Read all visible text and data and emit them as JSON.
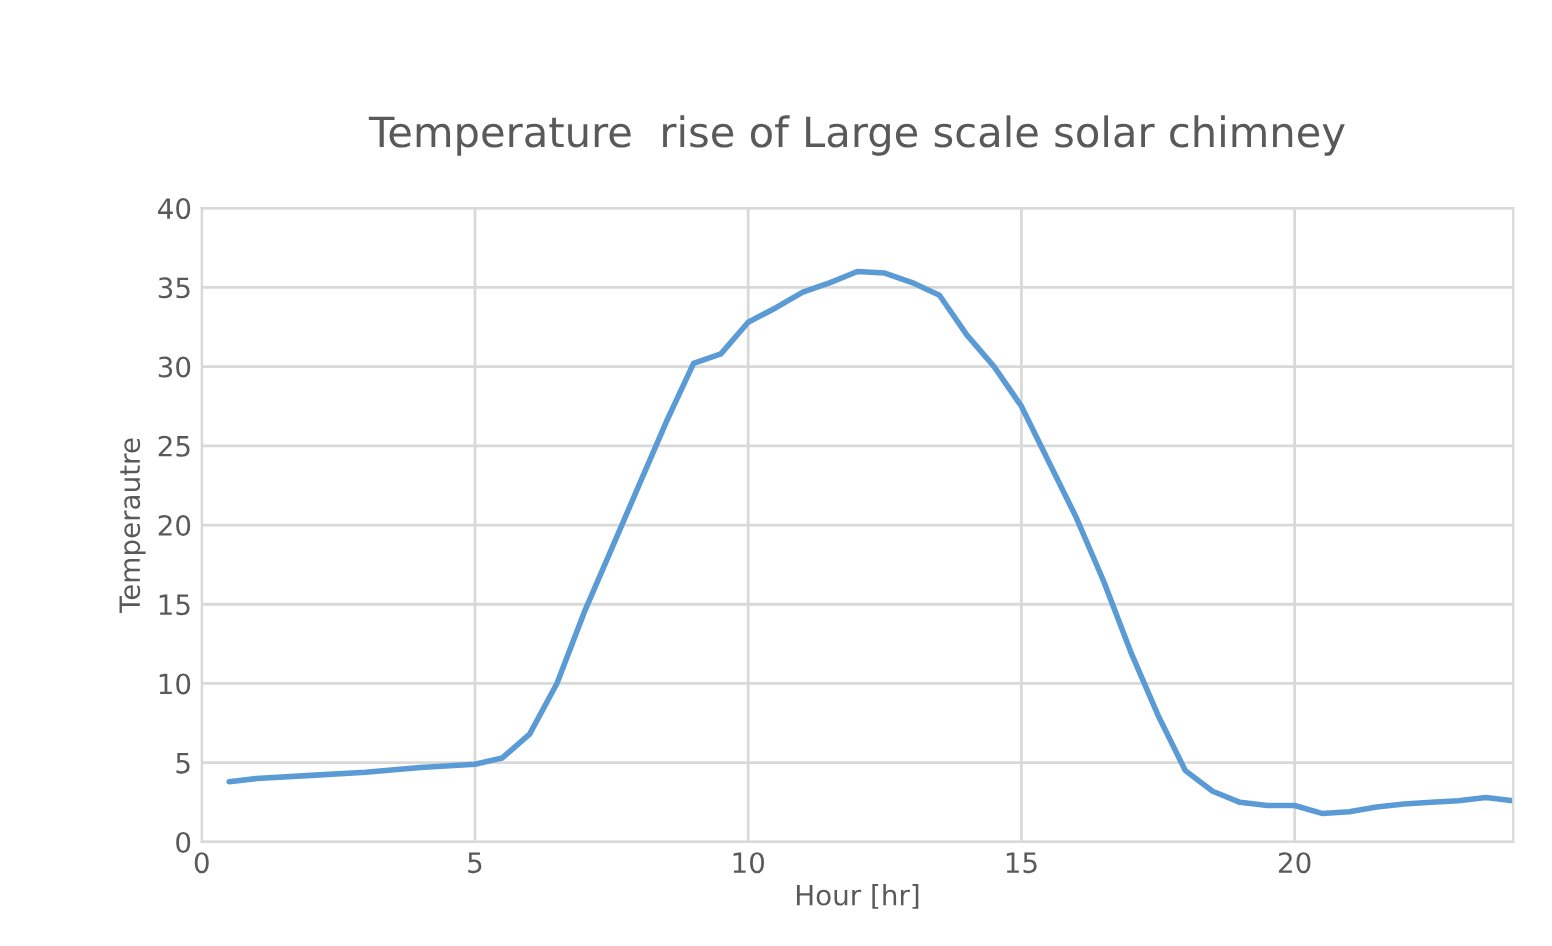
{
  "chart_data": {
    "type": "line",
    "title": "Temperature  rise of Large scale solar chimney",
    "xlabel": "Hour [hr]",
    "ylabel": "Temperautre",
    "x": [
      0.5,
      1,
      2,
      3,
      4,
      5,
      5.5,
      6,
      6.5,
      7,
      7.5,
      8,
      8.5,
      9,
      9.5,
      10,
      10.5,
      11,
      11.5,
      12,
      12.5,
      13,
      13.5,
      14,
      14.5,
      15,
      15.5,
      16,
      16.5,
      17,
      17.5,
      18,
      18.5,
      19,
      19.5,
      20,
      20.5,
      21,
      21.5,
      22,
      22.5,
      23,
      23.5,
      24
    ],
    "series": [
      {
        "color": "#5b9bd5",
        "values": [
          3.8,
          4.0,
          4.2,
          4.4,
          4.7,
          4.9,
          5.3,
          6.8,
          10,
          14.5,
          18.5,
          22.5,
          26.5,
          30.2,
          30.8,
          32.8,
          33.7,
          34.7,
          35.3,
          36.0,
          35.9,
          35.3,
          34.5,
          32,
          30,
          27.5,
          24,
          20.5,
          16.5,
          12,
          8,
          4.5,
          3.2,
          2.5,
          2.3,
          2.3,
          1.8,
          1.9,
          2.2,
          2.4,
          2.5,
          2.6,
          2.8,
          2.6
        ]
      }
    ],
    "xlim": [
      0,
      24
    ],
    "ylim": [
      0,
      40
    ],
    "xticks": [
      0,
      5,
      10,
      15,
      20
    ],
    "yticks": [
      0,
      5,
      10,
      15,
      20,
      25,
      30,
      35,
      40
    ],
    "grid": true,
    "marker": "none",
    "line_style": "solid"
  }
}
